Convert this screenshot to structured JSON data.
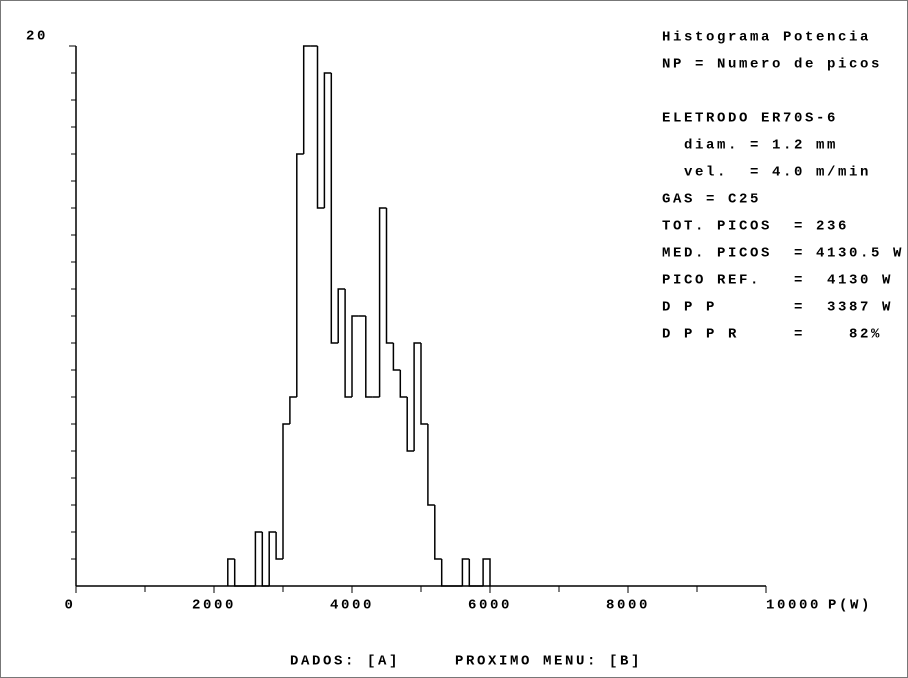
{
  "chart_data": {
    "type": "histogram",
    "bins": [
      2200,
      2300,
      2400,
      2500,
      2600,
      2700,
      2800,
      2900,
      3000,
      3100,
      3200,
      3300,
      3400,
      3500,
      3600,
      3700,
      3800,
      3900,
      4000,
      4100,
      4200,
      4300,
      4400,
      4500,
      4600,
      4700,
      4800,
      4900,
      5000,
      5100,
      5200,
      5300,
      5400,
      5500,
      5600,
      5700,
      5800,
      5900,
      6000
    ],
    "values": [
      1,
      0,
      0,
      0,
      2,
      0,
      2,
      1,
      6,
      7,
      16,
      20,
      20,
      14,
      19,
      9,
      11,
      7,
      10,
      10,
      7,
      7,
      14,
      9,
      8,
      7,
      5,
      9,
      6,
      3,
      1,
      0,
      0,
      0,
      1,
      0,
      0,
      1
    ],
    "color": "#000000",
    "xlim": [
      0,
      10000
    ],
    "xticks": [
      0,
      2000,
      4000,
      6000,
      8000,
      10000
    ],
    "xminor_ticks": [
      1000,
      3000,
      5000,
      7000,
      9000
    ],
    "xlabel": "P(W)",
    "ylim": [
      0,
      20
    ],
    "yticks": [
      20
    ],
    "yminor_ticks": [
      1,
      2,
      3,
      4,
      5,
      6,
      7,
      8,
      9,
      10,
      11,
      12,
      13,
      14,
      15,
      16,
      17,
      18,
      19
    ],
    "annotations": [
      "Histograma Potencia",
      "NP = Numero de picos",
      "ELETRODO ER70S-6",
      "  diam. = 1.2 mm",
      "  vel.  = 4.0 m/min",
      "GAS = C25",
      "TOT. PICOS  = 236",
      "MED. PICOS  = 4130.5 W",
      "PICO REF.   =  4130 W",
      "D P P       =  3387 W",
      "D P P R     =    82%"
    ],
    "footer": "DADOS: [A]     PROXIMO MENU: [B]"
  }
}
